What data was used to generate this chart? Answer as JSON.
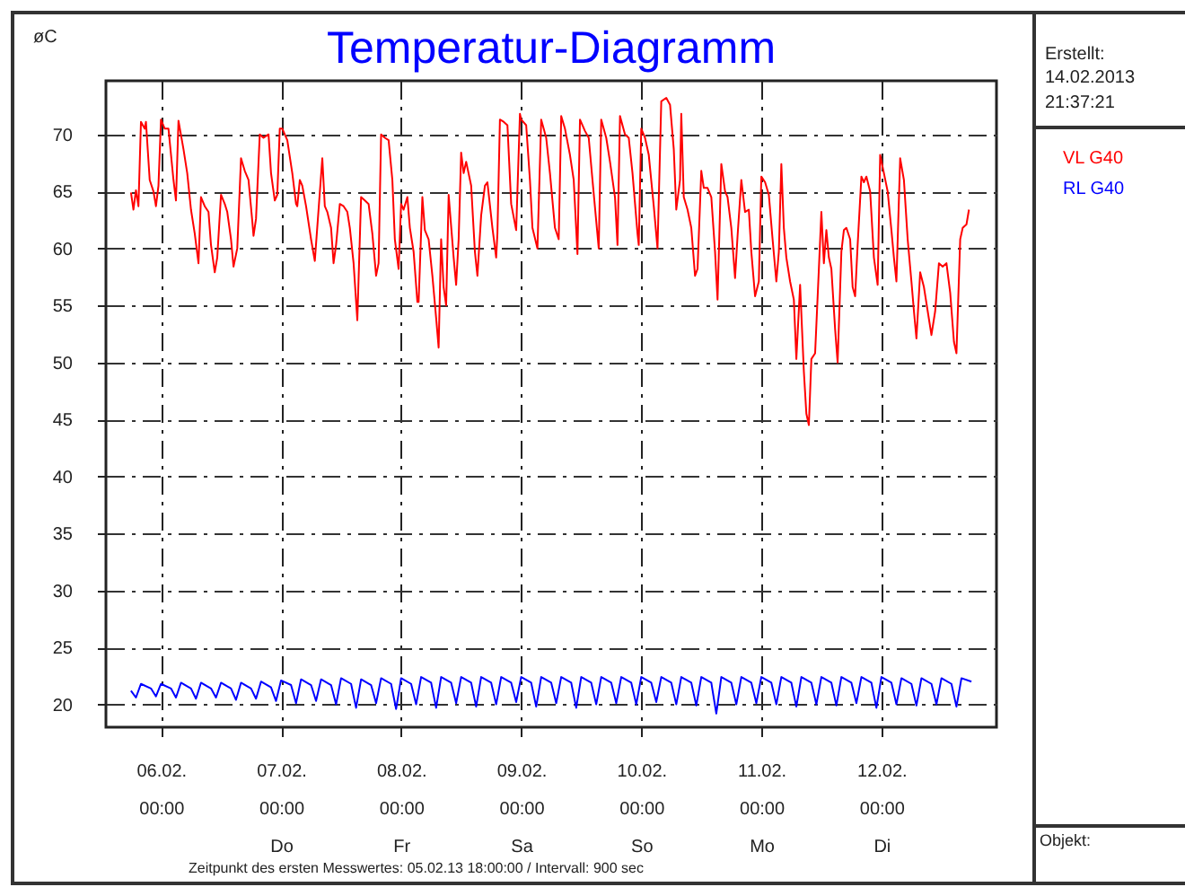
{
  "chart_data": {
    "type": "line",
    "title": "Temperatur-Diagramm",
    "ylabel": "øC",
    "xlim": [
      "2013-02-05T13:00",
      "2013-02-12T23:00"
    ],
    "xticks": [
      {
        "value": "2013-02-06",
        "label": "06.02.\n00:00"
      },
      {
        "value": "2013-02-07",
        "label": "07.02.\n00:00\nDo"
      },
      {
        "value": "2013-02-08",
        "label": "08.02.\n00:00\nFr"
      },
      {
        "value": "2013-02-09",
        "label": "09.02.\n00:00\nSa"
      },
      {
        "value": "2013-02-10",
        "label": "10.02.\n00:00\nSo"
      },
      {
        "value": "2013-02-11",
        "label": "11.02.\n00:00\nMo"
      },
      {
        "value": "2013-02-12",
        "label": "12.02.\n00:00\nDi"
      }
    ],
    "ylim": [
      18,
      74.7
    ],
    "yticks": [
      20,
      25,
      30,
      35,
      40,
      45,
      50,
      55,
      60,
      65,
      70
    ],
    "grid": true,
    "legend": "right",
    "annotations": [
      "Erstellt:",
      "14.02.2013",
      "21:37:21",
      "Objekt:",
      "Zeitpunkt des ersten Messwertes: 05.02.13 18:00:00 / Intervall: 900 sec"
    ],
    "series": [
      {
        "name": "VL G40",
        "color": "#ff0000",
        "x": [
          "2013-02-05T18:00",
          "2013-02-05T18:30",
          "2013-02-05T19:00",
          "2013-02-05T19:30",
          "2013-02-05T20:00",
          "2013-02-05T20:45",
          "2013-02-05T21:00",
          "2013-02-05T21:45",
          "2013-02-05T22:30",
          "2013-02-05T23:00",
          "2013-02-05T23:30",
          "2013-02-06T00:00",
          "2013-02-06T00:45",
          "2013-02-06T01:30",
          "2013-02-06T02:30",
          "2013-02-06T03:00",
          "2013-02-06T03:30",
          "2013-02-06T04:30",
          "2013-02-06T05:15",
          "2013-02-06T06:00",
          "2013-02-06T06:45",
          "2013-02-06T07:30",
          "2013-02-06T08:00",
          "2013-02-06T08:45",
          "2013-02-06T09:30",
          "2013-02-06T10:00",
          "2013-02-06T10:45",
          "2013-02-06T11:15",
          "2013-02-06T12:00",
          "2013-02-06T12:45",
          "2013-02-06T13:15",
          "2013-02-06T14:00",
          "2013-02-06T14:30",
          "2013-02-06T15:15",
          "2013-02-06T16:00",
          "2013-02-06T16:45",
          "2013-02-06T17:30",
          "2013-02-06T18:15",
          "2013-02-06T18:30",
          "2013-02-06T19:00",
          "2013-02-06T19:45",
          "2013-02-06T20:30",
          "2013-02-06T21:30",
          "2013-02-06T22:00",
          "2013-02-06T22:45",
          "2013-02-06T23:15",
          "2013-02-06T23:45",
          "2013-02-07T00:15",
          "2013-02-07T01:15",
          "2013-02-07T02:15",
          "2013-02-07T03:00",
          "2013-02-07T03:15",
          "2013-02-07T03:45",
          "2013-02-07T04:15",
          "2013-02-07T05:00",
          "2013-02-07T06:00",
          "2013-02-07T06:45",
          "2013-02-07T07:30",
          "2013-02-07T08:15",
          "2013-02-07T08:45",
          "2013-02-07T09:15",
          "2013-02-07T10:00",
          "2013-02-07T10:30",
          "2013-02-07T11:00",
          "2013-02-07T11:45",
          "2013-02-07T12:30",
          "2013-02-07T13:15",
          "2013-02-07T13:45",
          "2013-02-07T14:30",
          "2013-02-07T15:15",
          "2013-02-07T16:00",
          "2013-02-07T16:45",
          "2013-02-07T17:30",
          "2013-02-07T18:15",
          "2013-02-07T19:00",
          "2013-02-07T19:30",
          "2013-02-07T20:00",
          "2013-02-07T20:45",
          "2013-02-07T21:30",
          "2013-02-07T22:15",
          "2013-02-07T22:45",
          "2013-02-07T23:30",
          "2013-02-08T00:00",
          "2013-02-08T00:30",
          "2013-02-08T01:15",
          "2013-02-08T01:45",
          "2013-02-08T02:30",
          "2013-02-08T03:15",
          "2013-02-08T03:30",
          "2013-02-08T04:15",
          "2013-02-08T04:45",
          "2013-02-08T05:30",
          "2013-02-08T06:15",
          "2013-02-08T07:00",
          "2013-02-08T07:30",
          "2013-02-08T08:00",
          "2013-02-08T08:30",
          "2013-02-08T09:00",
          "2013-02-08T09:30",
          "2013-02-08T10:30",
          "2013-02-08T11:00",
          "2013-02-08T11:30",
          "2013-02-08T12:00",
          "2013-02-08T12:30",
          "2013-02-08T13:00",
          "2013-02-08T14:00",
          "2013-02-08T14:45",
          "2013-02-08T15:15",
          "2013-02-08T16:00",
          "2013-02-08T16:45",
          "2013-02-08T17:15",
          "2013-02-08T18:15",
          "2013-02-08T19:00",
          "2013-02-08T19:15",
          "2013-02-08T19:45",
          "2013-02-08T20:30",
          "2013-02-08T21:15",
          "2013-02-08T22:00",
          "2013-02-08T23:00",
          "2013-02-08T23:45",
          "2013-02-09T00:00",
          "2013-02-09T01:00",
          "2013-02-09T01:45",
          "2013-02-09T02:15",
          "2013-02-09T03:15",
          "2013-02-09T04:00",
          "2013-02-09T05:00",
          "2013-02-09T05:45",
          "2013-02-09T06:45",
          "2013-02-09T07:30",
          "2013-02-09T08:00",
          "2013-02-09T08:45",
          "2013-02-09T09:45",
          "2013-02-09T10:30",
          "2013-02-09T11:15",
          "2013-02-09T11:45",
          "2013-02-09T12:45",
          "2013-02-09T13:30",
          "2013-02-09T14:15",
          "2013-02-09T15:30",
          "2013-02-09T16:00",
          "2013-02-09T17:00",
          "2013-02-09T17:45",
          "2013-02-09T18:45",
          "2013-02-09T19:15",
          "2013-02-09T19:45",
          "2013-02-09T20:45",
          "2013-02-09T21:30",
          "2013-02-09T22:15",
          "2013-02-09T23:15",
          "2013-02-09T23:30",
          "2013-02-10T00:00",
          "2013-02-10T00:45",
          "2013-02-10T01:30",
          "2013-02-10T02:30",
          "2013-02-10T03:15",
          "2013-02-10T04:00",
          "2013-02-10T05:00",
          "2013-02-10T05:45",
          "2013-02-10T06:30",
          "2013-02-10T07:00",
          "2013-02-10T07:45",
          "2013-02-10T08:00",
          "2013-02-10T08:30",
          "2013-02-10T09:15",
          "2013-02-10T10:00",
          "2013-02-10T10:45",
          "2013-02-10T11:15",
          "2013-02-10T12:00",
          "2013-02-10T12:30",
          "2013-02-10T13:15",
          "2013-02-10T14:00",
          "2013-02-10T14:45",
          "2013-02-10T15:15",
          "2013-02-10T16:00",
          "2013-02-10T16:45",
          "2013-02-10T17:15",
          "2013-02-10T18:00",
          "2013-02-10T18:45",
          "2013-02-10T19:15",
          "2013-02-10T20:00",
          "2013-02-10T20:45",
          "2013-02-10T21:30",
          "2013-02-10T22:00",
          "2013-02-10T22:45",
          "2013-02-10T23:30",
          "2013-02-11T00:00",
          "2013-02-11T00:45",
          "2013-02-11T01:30",
          "2013-02-11T02:15",
          "2013-02-11T03:00",
          "2013-02-11T03:30",
          "2013-02-11T04:00",
          "2013-02-11T04:30",
          "2013-02-11T05:00",
          "2013-02-11T05:45",
          "2013-02-11T06:30",
          "2013-02-11T07:00",
          "2013-02-11T07:45",
          "2013-02-11T08:30",
          "2013-02-11T09:00",
          "2013-02-11T09:30",
          "2013-02-11T10:00",
          "2013-02-11T10:45",
          "2013-02-11T11:30",
          "2013-02-11T12:00",
          "2013-02-11T12:30",
          "2013-02-11T13:00",
          "2013-02-11T13:30",
          "2013-02-11T14:00",
          "2013-02-11T14:45",
          "2013-02-11T15:15",
          "2013-02-11T16:00",
          "2013-02-11T16:30",
          "2013-02-11T17:00",
          "2013-02-11T17:45",
          "2013-02-11T18:15",
          "2013-02-11T18:45",
          "2013-02-11T19:15",
          "2013-02-11T20:00",
          "2013-02-11T20:30",
          "2013-02-11T21:00",
          "2013-02-11T21:45",
          "2013-02-11T22:30",
          "2013-02-11T23:15",
          "2013-02-11T23:45",
          "2013-02-12T00:30",
          "2013-02-12T01:15",
          "2013-02-12T02:00",
          "2013-02-12T02:30",
          "2013-02-12T03:00",
          "2013-02-12T03:45",
          "2013-02-12T04:30",
          "2013-02-12T05:15",
          "2013-02-12T06:00",
          "2013-02-12T06:30",
          "2013-02-12T07:00",
          "2013-02-12T07:45",
          "2013-02-12T08:30",
          "2013-02-12T09:15",
          "2013-02-12T10:00",
          "2013-02-12T10:45",
          "2013-02-12T11:30",
          "2013-02-12T12:15",
          "2013-02-12T13:00",
          "2013-02-12T13:45",
          "2013-02-12T14:30",
          "2013-02-12T15:00",
          "2013-02-12T15:45",
          "2013-02-12T16:15",
          "2013-02-12T17:00",
          "2013-02-12T17:30"
        ],
        "values": [
          64.9,
          63.4,
          65.1,
          63.7,
          71.1,
          70.5,
          71.1,
          66,
          65,
          63.7,
          65.5,
          71.3,
          70.5,
          70.5,
          66,
          64.2,
          71.2,
          68.7,
          66.6,
          63.4,
          61.3,
          58.7,
          64.5,
          63.7,
          63.2,
          60.3,
          57.9,
          59.2,
          64.7,
          63.9,
          63.2,
          60.8,
          58.4,
          60,
          67.9,
          66.8,
          66,
          62.4,
          61.1,
          62.6,
          70,
          69.7,
          70,
          66.6,
          64.2,
          64.7,
          70.5,
          70.5,
          69.5,
          66.6,
          63.9,
          63.7,
          66,
          65.5,
          63.7,
          60.8,
          58.9,
          63.4,
          67.9,
          63.7,
          63.2,
          61.8,
          58.7,
          60.3,
          63.9,
          63.7,
          63.2,
          61.8,
          58.7,
          53.7,
          64.5,
          64.2,
          63.9,
          61.3,
          57.6,
          58.7,
          70,
          69.7,
          69.5,
          66,
          60.8,
          58.2,
          63.9,
          63.4,
          64.5,
          61.8,
          59.7,
          55.3,
          55.3,
          64.5,
          61.6,
          60.8,
          57.6,
          53.9,
          51.3,
          60.8,
          56.6,
          55,
          64.7,
          59.2,
          56.8,
          60.8,
          68.4,
          66.6,
          67.6,
          65.5,
          59.7,
          57.6,
          62.9,
          65.5,
          65.8,
          61.8,
          59.2,
          61.3,
          71.3,
          71.1,
          70.8,
          63.9,
          61.6,
          71.8,
          71.3,
          70.8,
          66,
          61.8,
          60,
          71.3,
          69.7,
          66.6,
          61.8,
          60.8,
          71.6,
          70.5,
          68.2,
          66,
          59.5,
          71.3,
          70.3,
          69.7,
          66,
          60,
          71.3,
          69.7,
          67.6,
          64.5,
          60.3,
          71.6,
          70,
          69.7,
          66.6,
          61.3,
          60.3,
          70.5,
          69.7,
          68.2,
          63.7,
          60,
          72.9,
          73.2,
          72.6,
          68.7,
          63.4,
          66,
          71.8,
          64.5,
          63.4,
          61.8,
          57.6,
          58.2,
          66.8,
          65.3,
          65.3,
          64.5,
          59.7,
          55.5,
          67.4,
          65,
          64.5,
          61.8,
          57.4,
          61.1,
          66,
          63.2,
          63.4,
          59.7,
          55.8,
          57.1,
          66.3,
          65.8,
          64.7,
          60.8,
          57.1,
          59.7,
          67.4,
          61.8,
          59.2,
          57.1,
          55.5,
          50.3,
          56.8,
          49.2,
          45.5,
          44.5,
          50.3,
          50.8,
          58.2,
          63.2,
          58.7,
          61.6,
          59.2,
          58.2,
          52.9,
          50,
          59.7,
          61.6,
          61.8,
          60.8,
          56.6,
          55.8,
          60.3,
          66.3,
          65.8,
          66.3,
          65,
          59.2,
          56.8,
          68.2,
          66.6,
          65,
          61.6,
          59.2,
          57.1,
          67.9,
          66,
          60.8,
          57.1,
          54.5,
          52.1,
          57.9,
          56.6,
          54.5,
          52.4,
          54.5,
          58.7,
          58.4,
          58.7,
          56.1,
          51.8,
          50.8,
          60.8,
          61.8,
          62.1,
          63.4
        ]
      },
      {
        "name": "RL G40",
        "color": "#0000ff",
        "x": [
          "2013-02-05T18:00",
          "2013-02-05T19:00",
          "2013-02-05T20:00",
          "2013-02-05T22:00",
          "2013-02-05T23:00",
          "2013-02-06T00:00",
          "2013-02-06T02:00",
          "2013-02-06T03:00",
          "2013-02-06T04:00",
          "2013-02-06T06:00",
          "2013-02-06T07:00",
          "2013-02-06T08:00",
          "2013-02-06T10:00",
          "2013-02-06T11:00",
          "2013-02-06T12:00",
          "2013-02-06T14:00",
          "2013-02-06T15:00",
          "2013-02-06T16:00",
          "2013-02-06T18:00",
          "2013-02-06T19:00",
          "2013-02-06T20:00",
          "2013-02-06T22:00",
          "2013-02-06T23:00",
          "2013-02-07T00:00",
          "2013-02-07T02:00",
          "2013-02-07T03:00",
          "2013-02-07T04:00",
          "2013-02-07T06:00",
          "2013-02-07T07:00",
          "2013-02-07T08:00",
          "2013-02-07T10:00",
          "2013-02-07T11:00",
          "2013-02-07T12:00",
          "2013-02-07T14:00",
          "2013-02-07T15:00",
          "2013-02-07T16:00",
          "2013-02-07T18:00",
          "2013-02-07T19:00",
          "2013-02-07T20:00",
          "2013-02-07T22:00",
          "2013-02-07T23:00",
          "2013-02-08T00:00",
          "2013-02-08T02:00",
          "2013-02-08T03:00",
          "2013-02-08T04:00",
          "2013-02-08T06:00",
          "2013-02-08T07:00",
          "2013-02-08T08:00",
          "2013-02-08T10:00",
          "2013-02-08T11:00",
          "2013-02-08T12:00",
          "2013-02-08T14:00",
          "2013-02-08T15:00",
          "2013-02-08T16:00",
          "2013-02-08T18:00",
          "2013-02-08T19:00",
          "2013-02-08T20:00",
          "2013-02-08T22:00",
          "2013-02-08T23:00",
          "2013-02-09T00:00",
          "2013-02-09T02:00",
          "2013-02-09T03:00",
          "2013-02-09T04:00",
          "2013-02-09T06:00",
          "2013-02-09T07:00",
          "2013-02-09T08:00",
          "2013-02-09T10:00",
          "2013-02-09T11:00",
          "2013-02-09T12:00",
          "2013-02-09T14:00",
          "2013-02-09T15:00",
          "2013-02-09T16:00",
          "2013-02-09T18:00",
          "2013-02-09T19:00",
          "2013-02-09T20:00",
          "2013-02-09T22:00",
          "2013-02-09T23:00",
          "2013-02-10T00:00",
          "2013-02-10T02:00",
          "2013-02-10T03:00",
          "2013-02-10T04:00",
          "2013-02-10T06:00",
          "2013-02-10T07:00",
          "2013-02-10T08:00",
          "2013-02-10T10:00",
          "2013-02-10T11:00",
          "2013-02-10T12:00",
          "2013-02-10T14:00",
          "2013-02-10T15:00",
          "2013-02-10T16:00",
          "2013-02-10T18:00",
          "2013-02-10T19:00",
          "2013-02-10T20:00",
          "2013-02-10T22:00",
          "2013-02-10T23:00",
          "2013-02-11T00:00",
          "2013-02-11T02:00",
          "2013-02-11T03:00",
          "2013-02-11T04:00",
          "2013-02-11T06:00",
          "2013-02-11T07:00",
          "2013-02-11T08:00",
          "2013-02-11T10:00",
          "2013-02-11T11:00",
          "2013-02-11T12:00",
          "2013-02-11T14:00",
          "2013-02-11T15:00",
          "2013-02-11T16:00",
          "2013-02-11T18:00",
          "2013-02-11T19:00",
          "2013-02-11T20:00",
          "2013-02-11T22:00",
          "2013-02-11T23:00",
          "2013-02-12T00:00",
          "2013-02-12T02:00",
          "2013-02-12T03:00",
          "2013-02-12T04:00",
          "2013-02-12T06:00",
          "2013-02-12T07:00",
          "2013-02-12T08:00",
          "2013-02-12T10:00",
          "2013-02-12T11:00",
          "2013-02-12T12:00",
          "2013-02-12T14:00",
          "2013-02-12T15:00",
          "2013-02-12T16:00",
          "2013-02-12T18:00"
        ],
        "values": [
          21.2,
          20.6,
          21.8,
          21.4,
          20.7,
          21.8,
          21.4,
          20.6,
          21.9,
          21.4,
          20.5,
          21.9,
          21.4,
          20.6,
          21.9,
          21.4,
          20.4,
          21.9,
          21.4,
          20.5,
          22.0,
          21.5,
          20.3,
          22.1,
          21.7,
          20.1,
          22.2,
          21.7,
          20.3,
          22.2,
          21.7,
          20.0,
          22.3,
          21.8,
          19.7,
          22.2,
          21.7,
          20.1,
          22.3,
          21.8,
          19.6,
          22.3,
          21.8,
          20.0,
          22.4,
          21.9,
          19.7,
          22.4,
          21.9,
          20.1,
          22.4,
          21.9,
          19.8,
          22.4,
          21.9,
          20.0,
          22.4,
          21.9,
          20.2,
          22.4,
          21.9,
          19.8,
          22.4,
          21.9,
          20.1,
          22.4,
          21.9,
          19.7,
          22.4,
          21.9,
          20.0,
          22.4,
          21.9,
          20.1,
          22.4,
          21.9,
          20.0,
          22.4,
          21.9,
          20.2,
          22.4,
          21.9,
          20.0,
          22.4,
          21.9,
          19.9,
          22.4,
          21.9,
          19.2,
          22.4,
          21.9,
          20.0,
          22.4,
          21.9,
          20.1,
          22.4,
          21.9,
          20.0,
          22.4,
          21.9,
          19.8,
          22.4,
          21.9,
          20.0,
          22.4,
          21.9,
          19.9,
          22.4,
          21.9,
          20.1,
          22.4,
          21.9,
          19.7,
          22.4,
          21.9,
          20.0,
          22.3,
          21.8,
          19.9,
          22.3,
          21.8,
          20.0,
          22.3,
          21.8,
          19.8,
          22.3,
          22.0
        ]
      }
    ]
  }
}
